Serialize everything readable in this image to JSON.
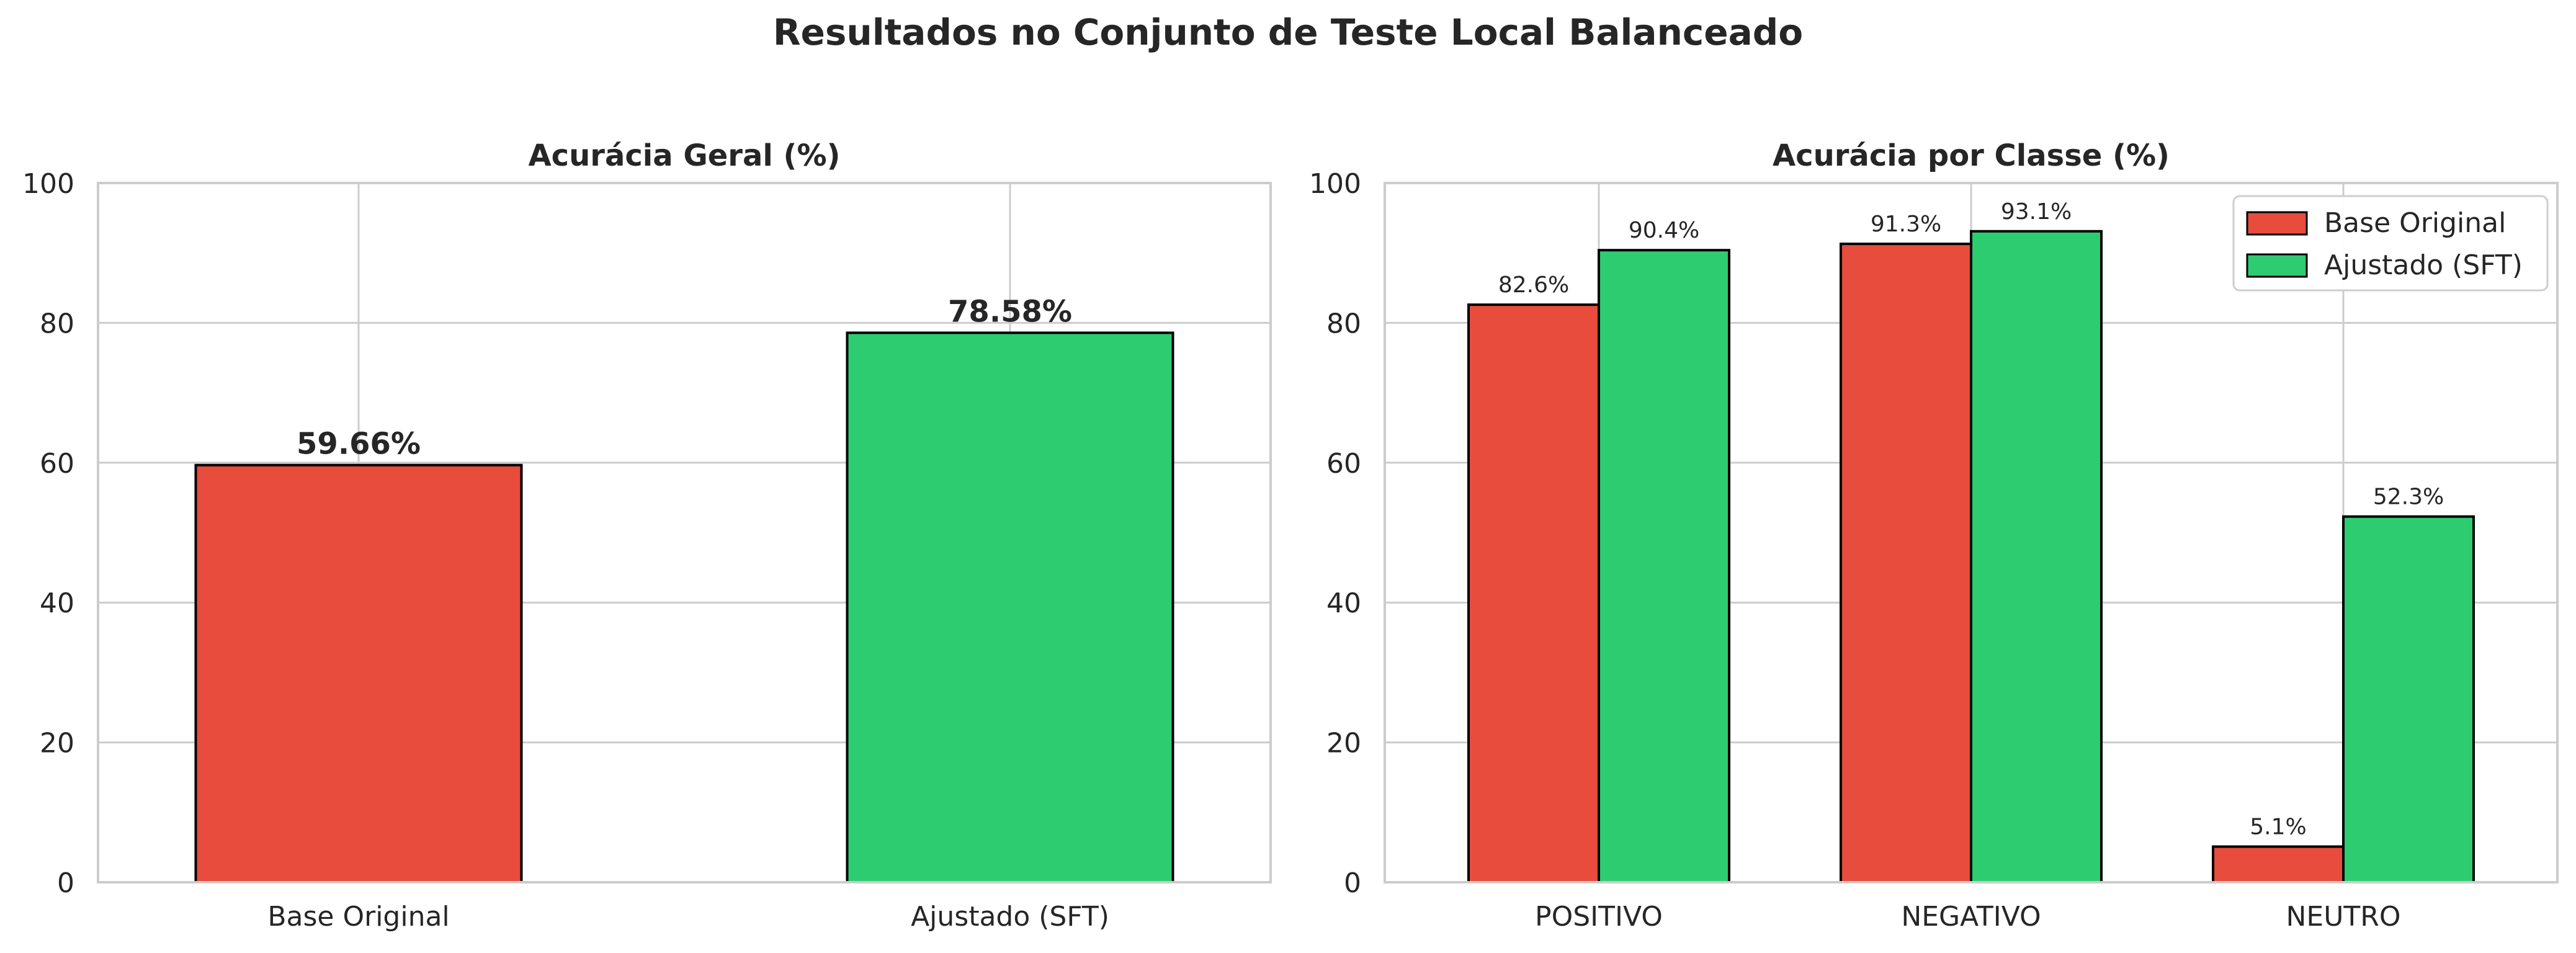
{
  "figure": {
    "title": "Resultados no Conjunto de Teste Local Balanceado"
  },
  "colors": {
    "base": "#e74c3c",
    "sft": "#2ecc71",
    "edge": "#000000",
    "grid": "#cccccc",
    "text": "#262626"
  },
  "chart_data": [
    {
      "type": "bar",
      "title": "Acurácia Geral (%)",
      "categories": [
        "Base Original",
        "Ajustado (SFT)"
      ],
      "values": [
        59.66,
        78.58
      ],
      "value_labels": [
        "59.66%",
        "78.58%"
      ],
      "bar_colors": [
        "#e74c3c",
        "#2ecc71"
      ],
      "xlabel": "",
      "ylabel": "",
      "ylim": [
        0,
        100
      ],
      "yticks": [
        0,
        20,
        40,
        60,
        80,
        100
      ],
      "grid": true
    },
    {
      "type": "bar",
      "title": "Acurácia por Classe (%)",
      "categories": [
        "POSITIVO",
        "NEGATIVO",
        "NEUTRO"
      ],
      "series": [
        {
          "name": "Base Original",
          "values": [
            82.6,
            91.3,
            5.1
          ],
          "labels": [
            "82.6%",
            "91.3%",
            "5.1%"
          ],
          "color": "#e74c3c"
        },
        {
          "name": "Ajustado (SFT)",
          "values": [
            90.4,
            93.1,
            52.3
          ],
          "labels": [
            "90.4%",
            "93.1%",
            "52.3%"
          ],
          "color": "#2ecc71"
        }
      ],
      "xlabel": "",
      "ylabel": "",
      "ylim": [
        0,
        100
      ],
      "yticks": [
        0,
        20,
        40,
        60,
        80,
        100
      ],
      "grid": true,
      "legend": "top-right"
    }
  ]
}
